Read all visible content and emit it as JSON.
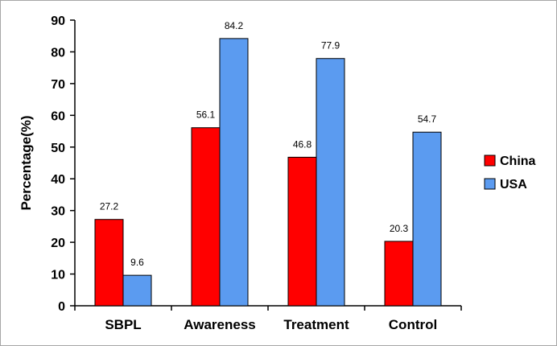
{
  "chart_data": {
    "type": "bar",
    "title": "",
    "xlabel": "",
    "ylabel": "Percentage(%)",
    "ylim": [
      0,
      90
    ],
    "yticks": [
      0,
      10,
      20,
      30,
      40,
      50,
      60,
      70,
      80,
      90
    ],
    "categories": [
      "SBPL",
      "Awareness",
      "Treatment",
      "Control"
    ],
    "series": [
      {
        "name": "China",
        "color": "#ff0000",
        "values": [
          27.2,
          56.1,
          46.8,
          20.3
        ]
      },
      {
        "name": "USA",
        "color": "#5b9bf0",
        "values": [
          9.6,
          84.2,
          77.9,
          54.7
        ]
      }
    ],
    "legend_position": "right",
    "grid": false
  }
}
